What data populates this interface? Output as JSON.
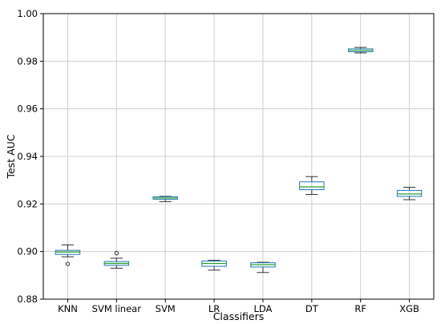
{
  "chart_data": {
    "type": "box",
    "title": "",
    "xlabel": "Classifiers",
    "ylabel": "Test AUC",
    "ylim": [
      0.88,
      1.0
    ],
    "yticks": [
      0.88,
      0.9,
      0.92,
      0.94,
      0.96,
      0.98,
      1.0
    ],
    "ytick_labels": [
      "0.88",
      "0.90",
      "0.92",
      "0.94",
      "0.96",
      "0.98",
      "1.00"
    ],
    "grid": true,
    "colors": {
      "box": "#1f77b4",
      "median": "#2ca02c",
      "whisker": "#333333",
      "grid": "#d0d0d0"
    },
    "categories": [
      "KNN",
      "SVM linear",
      "SVM",
      "LR",
      "LDA",
      "DT",
      "RF",
      "XGB"
    ],
    "boxes": [
      {
        "whislo": 0.8978,
        "q1": 0.8988,
        "med": 0.8998,
        "q3": 0.9005,
        "whishi": 0.9028,
        "fliers": [
          0.8948
        ]
      },
      {
        "whislo": 0.893,
        "q1": 0.8942,
        "med": 0.895,
        "q3": 0.8958,
        "whishi": 0.8972,
        "fliers": [
          0.8993
        ]
      },
      {
        "whislo": 0.921,
        "q1": 0.922,
        "med": 0.9225,
        "q3": 0.923,
        "whishi": 0.9232,
        "fliers": []
      },
      {
        "whislo": 0.8922,
        "q1": 0.8938,
        "med": 0.895,
        "q3": 0.896,
        "whishi": 0.8963,
        "fliers": []
      },
      {
        "whislo": 0.8912,
        "q1": 0.8935,
        "med": 0.8945,
        "q3": 0.8953,
        "whishi": 0.8955,
        "fliers": []
      },
      {
        "whislo": 0.924,
        "q1": 0.926,
        "med": 0.9272,
        "q3": 0.9293,
        "whishi": 0.9315,
        "fliers": []
      },
      {
        "whislo": 0.9835,
        "q1": 0.984,
        "med": 0.9846,
        "q3": 0.9852,
        "whishi": 0.9858,
        "fliers": []
      },
      {
        "whislo": 0.9218,
        "q1": 0.9232,
        "med": 0.9242,
        "q3": 0.9257,
        "whishi": 0.927,
        "fliers": []
      }
    ]
  }
}
